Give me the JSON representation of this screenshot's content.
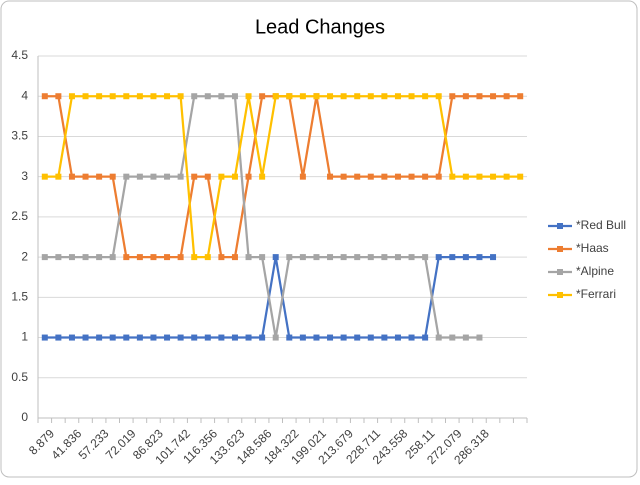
{
  "chart_data": {
    "type": "line",
    "title": "Lead Changes",
    "categories": [
      "8.879",
      null,
      "41.836",
      null,
      "57.233",
      null,
      "72.019",
      null,
      "86.823",
      null,
      "101.742",
      null,
      "116.356",
      null,
      "133.623",
      null,
      "148.586",
      null,
      "184.322",
      null,
      "199.021",
      null,
      "213.679",
      null,
      "228.711",
      null,
      "243.558",
      null,
      "258.11",
      null,
      "272.079",
      null,
      "286.318",
      null,
      null,
      null
    ],
    "series": [
      {
        "name": "*Red Bull",
        "color": "#4472c4",
        "values": [
          1,
          1,
          1,
          1,
          1,
          1,
          1,
          1,
          1,
          1,
          1,
          1,
          1,
          1,
          1,
          1,
          1,
          2,
          1,
          1,
          1,
          1,
          1,
          1,
          1,
          1,
          1,
          1,
          1,
          2,
          2,
          2,
          2,
          2,
          null,
          null
        ]
      },
      {
        "name": "*Haas",
        "color": "#ed7d31",
        "values": [
          4,
          4,
          3,
          3,
          3,
          3,
          2,
          2,
          2,
          2,
          2,
          3,
          3,
          2,
          2,
          3,
          4,
          4,
          4,
          3,
          4,
          3,
          3,
          3,
          3,
          3,
          3,
          3,
          3,
          3,
          4,
          4,
          4,
          4,
          4,
          4
        ]
      },
      {
        "name": "*Alpine",
        "color": "#a5a5a5",
        "values": [
          2,
          2,
          2,
          2,
          2,
          2,
          3,
          3,
          3,
          3,
          3,
          4,
          4,
          4,
          4,
          2,
          2,
          1,
          2,
          2,
          2,
          2,
          2,
          2,
          2,
          2,
          2,
          2,
          2,
          1,
          1,
          1,
          1,
          null,
          null,
          null
        ]
      },
      {
        "name": "*Ferrari",
        "color": "#ffc000",
        "values": [
          3,
          3,
          4,
          4,
          4,
          4,
          4,
          4,
          4,
          4,
          4,
          2,
          2,
          3,
          3,
          4,
          3,
          4,
          4,
          4,
          4,
          4,
          4,
          4,
          4,
          4,
          4,
          4,
          4,
          4,
          3,
          3,
          3,
          3,
          3,
          3
        ]
      }
    ],
    "ylim": [
      0,
      4.5
    ],
    "yticks": [
      0,
      0.5,
      1,
      1.5,
      2,
      2.5,
      3,
      3.5,
      4,
      4.5
    ],
    "grid": true,
    "legend": "right"
  }
}
